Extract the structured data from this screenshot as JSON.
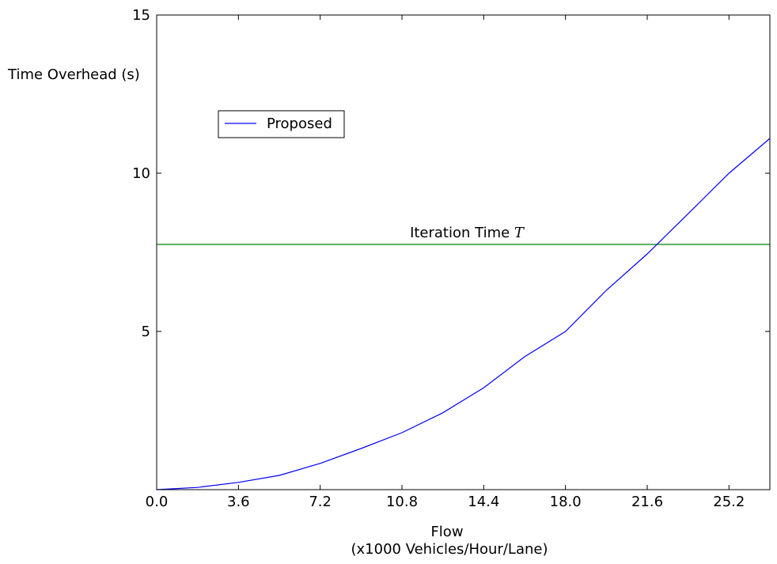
{
  "chart_data": {
    "type": "line",
    "xlabel_line1": "Flow",
    "xlabel_line2": "(x1000 Vehicles/Hour/Lane)",
    "ylabel": "Time Overhead (s)",
    "xlim": [
      0,
      27
    ],
    "ylim": [
      0,
      15
    ],
    "xticks": [
      "0.0",
      "3.6",
      "7.2",
      "10.8",
      "14.4",
      "18.0",
      "21.6",
      "25.2"
    ],
    "yticks": [
      "5",
      "10",
      "15"
    ],
    "grid": false,
    "legend_position": "upper-left",
    "series": [
      {
        "name": "Proposed",
        "color": "#0000ff",
        "x": [
          0,
          1.8,
          3.6,
          5.4,
          7.2,
          9.0,
          10.8,
          12.6,
          14.4,
          16.2,
          18.0,
          19.8,
          21.6,
          23.4,
          25.2,
          27.0
        ],
        "y": [
          0,
          0.07,
          0.23,
          0.45,
          0.83,
          1.3,
          1.8,
          2.43,
          3.22,
          4.2,
          5.0,
          6.3,
          7.45,
          8.72,
          10.0,
          11.1
        ]
      }
    ],
    "reference_line": {
      "y": 7.75,
      "color": "#008000",
      "label_text": "Iteration Time ",
      "label_symbol": "T"
    }
  }
}
